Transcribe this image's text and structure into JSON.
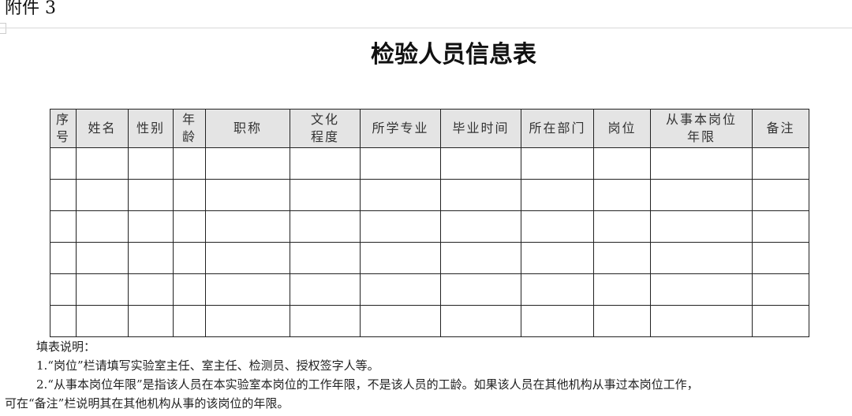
{
  "attachment_label": "附件 3",
  "title": "检验人员信息表",
  "table": {
    "headers": [
      "序\n号",
      "姓名",
      "性别",
      "年\n龄",
      "职称",
      "文化\n程度",
      "所学专业",
      "毕业时间",
      "所在部门",
      "岗位",
      "从事本岗位\n年限",
      "备注"
    ],
    "row_count": 6
  },
  "notes": {
    "heading": "填表说明：",
    "items": [
      "1.“岗位”栏请填写实验室主任、室主任、检测员、授权签字人等。",
      "2.“从事本岗位年限”是指该人员在本实验室本岗位的工作年限，不是该人员的工龄。如果该人员在其他机构从事过本岗位工作，",
      "可在“备注”栏说明其在其他机构从事的该岗位的年限。"
    ]
  }
}
